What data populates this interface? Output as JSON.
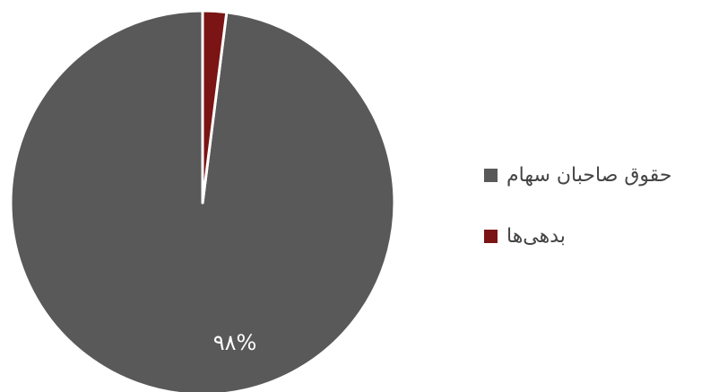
{
  "chart_data": {
    "type": "pie",
    "slices": [
      {
        "name": "حقوق صاحبان سهام",
        "value": 98,
        "label": "۹۸%",
        "color": "#595959"
      },
      {
        "name": "بدهی‌ها",
        "value": 2,
        "label": "",
        "color": "#7b1414"
      }
    ],
    "legend_position": "right"
  }
}
